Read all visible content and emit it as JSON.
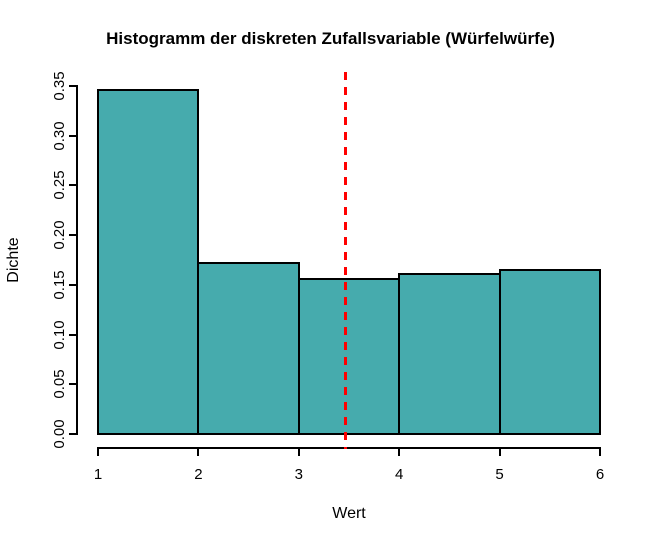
{
  "chart_data": {
    "type": "bar",
    "subtype": "histogram",
    "title": "Histogramm der diskreten Zufallsvariable (Würfelwürfe)",
    "xlabel": "Wert",
    "ylabel": "Dichte",
    "breaks": [
      1,
      2,
      3,
      4,
      5,
      6
    ],
    "densities": [
      0.346,
      0.172,
      0.156,
      0.161,
      0.165
    ],
    "x_ticks": [
      1,
      2,
      3,
      4,
      5,
      6
    ],
    "x_tick_labels": [
      "1",
      "2",
      "3",
      "4",
      "5",
      "6"
    ],
    "y_ticks": [
      0.0,
      0.05,
      0.1,
      0.15,
      0.2,
      0.25,
      0.3,
      0.35
    ],
    "y_tick_labels": [
      "0.00",
      "0.05",
      "0.10",
      "0.15",
      "0.20",
      "0.25",
      "0.30",
      "0.35"
    ],
    "xlim": [
      1,
      6
    ],
    "ylim": [
      0,
      0.35
    ],
    "grid": false,
    "legend": null,
    "bar_fill_color": "#46abad",
    "bar_border_color": "#000000",
    "axis_color": "#000000",
    "vline": {
      "x": 3.47,
      "color": "#ff0000",
      "style": "dashed"
    }
  }
}
